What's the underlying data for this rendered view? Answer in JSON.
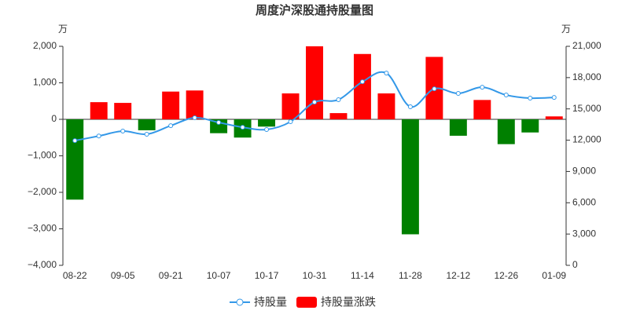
{
  "chart_data": {
    "type": "bar-line",
    "title": "周度沪深股通持股量图",
    "y_unit": "万",
    "y2_unit": "万",
    "categories": [
      "08-22",
      null,
      "09-05",
      null,
      "09-21",
      null,
      "10-07",
      null,
      "10-17",
      null,
      "10-31",
      null,
      "11-14",
      null,
      "11-28",
      null,
      "12-12",
      null,
      "12-26",
      null,
      "01-09"
    ],
    "series": [
      {
        "name": "持股量涨跌",
        "type": "bar",
        "color": "#ff0000",
        "negative_color": "#008000",
        "values": [
          -2200,
          470,
          450,
          -300,
          760,
          790,
          -380,
          -500,
          -200,
          710,
          2000,
          170,
          1790,
          710,
          -3150,
          1710,
          -450,
          530,
          -680,
          -360,
          80
        ]
      },
      {
        "name": "持股量",
        "type": "line",
        "axis": "y2",
        "color": "#3398e8",
        "values": [
          11960,
          12400,
          12870,
          12570,
          13390,
          14150,
          13700,
          13240,
          13020,
          13770,
          15650,
          15880,
          17600,
          18430,
          15200,
          16930,
          16480,
          17080,
          16330,
          16030,
          16100
        ]
      }
    ],
    "ylim": [
      -4000,
      2000
    ],
    "yticks": [
      {
        "value": -4000,
        "label": "−4,000"
      },
      {
        "value": -3000,
        "label": "−3,000"
      },
      {
        "value": -2000,
        "label": "−2,000"
      },
      {
        "value": -1000,
        "label": "−1,000"
      },
      0,
      {
        "value": 1000,
        "label": "1,000"
      },
      {
        "value": 2000,
        "label": "2,000"
      }
    ],
    "y2lim": [
      0,
      21000
    ],
    "y2ticks": [
      0,
      {
        "value": 3000,
        "label": "3,000"
      },
      {
        "value": 6000,
        "label": "6,000"
      },
      {
        "value": 9000,
        "label": "9,000"
      },
      {
        "value": 12000,
        "label": "12,000"
      },
      {
        "value": 15000,
        "label": "15,000"
      },
      {
        "value": 18000,
        "label": "18,000"
      },
      {
        "value": 21000,
        "label": "21,000"
      }
    ]
  }
}
